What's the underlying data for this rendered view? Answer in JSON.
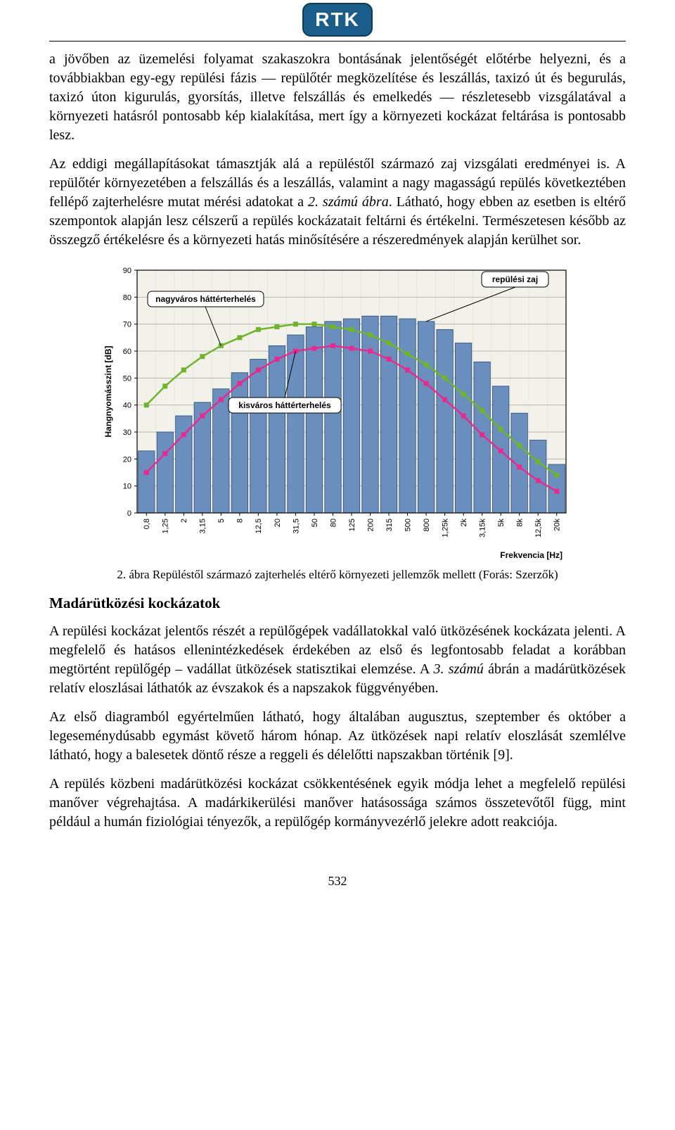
{
  "logo_text": "RTK",
  "paragraphs": {
    "p1": "a jövőben az üzemelési folyamat szakaszokra bontásának jelentőségét előtérbe helyezni, és a továbbiakban egy-egy repülési fázis — repülőtér megközelítése és leszállás, taxizó út és begurulás, taxizó úton kigurulás, gyorsítás, illetve felszállás és emelkedés — részletesebb vizsgálatával a környezeti hatásról pontosabb kép kialakítása, mert így a környezeti kockázat feltárása is pontosabb lesz.",
    "p2_a": "Az eddigi megállapításokat támasztják alá a repüléstől származó zaj vizsgálati eredményei is. A repülőtér környezetében a felszállás és a leszállás, valamint a nagy magasságú repülés következtében fellépő zajterhelésre mutat mérési adatokat a ",
    "p2_em": "2. számú ábra",
    "p2_b": ". Látható, hogy ebben az esetben is eltérő szempontok alapján lesz célszerű a repülés kockázatait feltárni és értékelni. Természetesen később az összegző értékelésre és a környezeti hatás minősítésére a részeredmények alapján kerülhet sor.",
    "p3_a": "A repülési kockázat jelentős részét a repülőgépek vadállatokkal való ütközésének kockázata jelenti. A megfelelő és hatásos ellenintézkedések érdekében az első és legfontosabb feladat a korábban megtörtént repülőgép – vadállat ütközések statisztikai elemzése. A ",
    "p3_em": "3. számú",
    "p3_b": " ábrán a madárütközések relatív eloszlásai láthatók az évszakok és a napszakok függvényében.",
    "p4": "Az első diagramból egyértelműen látható, hogy általában augusztus, szeptember és október a legeseménydúsabb egymást követő három hónap. Az ütközések napi relatív eloszlását szemlélve látható, hogy a balesetek döntő része a reggeli és délelőtti napszakban történik [9].",
    "p5": "A repülés közbeni madárütközési kockázat csökkentésének egyik módja lehet a megfelelő repülési manőver végrehajtása. A madárkikerülési manőver hatásossága számos összetevőtől függ, mint például a humán fiziológiai tényezők, a repülőgép kormányvezérlő jelekre adott reakciója."
  },
  "caption": "2. ábra Repüléstől származó zajterhelés eltérő környezeti jellemzők mellett (Forás: Szerzők)",
  "section_heading": "Madárütközési kockázatok",
  "page_number": "532",
  "chart": {
    "type": "bar_with_lines",
    "ylabel": "Hangnyomásszint [dB]",
    "xlabel": "Frekvencia [Hz]",
    "ylim": [
      0,
      90
    ],
    "ytick_step": 10,
    "yticks": [
      0,
      10,
      20,
      30,
      40,
      50,
      60,
      70,
      80,
      90
    ],
    "x_categories": [
      "0,8",
      "1,25",
      "2",
      "3,15",
      "5",
      "8",
      "12,5",
      "20",
      "31,5",
      "50",
      "80",
      "125",
      "200",
      "315",
      "500",
      "800",
      "1,25k",
      "2k",
      "3,15k",
      "5k",
      "8k",
      "12,5k",
      "20k"
    ],
    "bars_values": [
      23,
      30,
      36,
      41,
      46,
      52,
      57,
      62,
      66,
      69,
      71,
      72,
      73,
      73,
      72,
      71,
      68,
      63,
      56,
      47,
      37,
      27,
      18
    ],
    "bar_color": "#6a8fbf",
    "bar_border": "#2d4a73",
    "line_green_values": [
      40,
      47,
      53,
      58,
      62,
      65,
      68,
      69,
      70,
      70,
      69,
      68,
      66,
      63,
      59,
      55,
      50,
      44,
      38,
      31,
      25,
      19,
      14
    ],
    "line_green_color": "#6fb52b",
    "line_pink_values": [
      15,
      22,
      29,
      36,
      42,
      48,
      53,
      57,
      60,
      61,
      62,
      61,
      60,
      57,
      53,
      48,
      42,
      36,
      29,
      23,
      17,
      12,
      8
    ],
    "line_pink_color": "#e82a8f",
    "plot_bg": "#f2f2ea",
    "grid_color": "#b8b8a8",
    "axis_color": "#000000",
    "callouts": {
      "nagyvaros": "nagyváros háttérterhelés",
      "kisvaros": "kisváros háttérterhelés",
      "repulesi": "repülési zaj"
    },
    "line_width": 2.5,
    "bar_gap_ratio": 0.12
  }
}
